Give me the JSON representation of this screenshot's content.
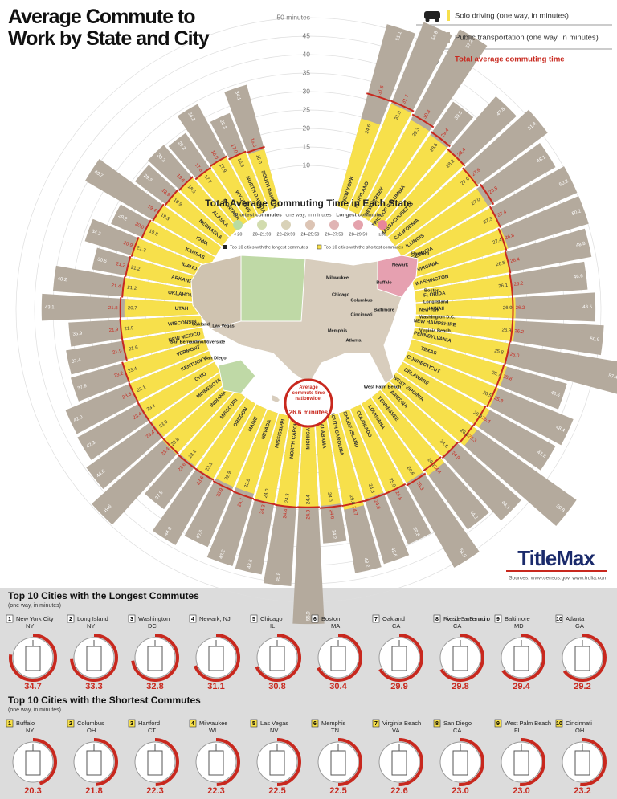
{
  "chart_data": {
    "type": "radial-bar",
    "title": "Average Commute to Work by State and City",
    "categories": [
      "NEW YORK",
      "MARYLAND",
      "NEW JERSEY",
      "DISTRICT OF COLUMBIA",
      "MASSACHUSETTS",
      "CALIFORNIA",
      "ILLINOIS",
      "GEORGIA",
      "VIRGINIA",
      "WASHINGTON",
      "FLORIDA",
      "HAWAII",
      "NEW HAMPSHIRE",
      "PENNSYLVANIA",
      "TEXAS",
      "CONNECTICUT",
      "DELAWARE",
      "WEST VIRGINIA",
      "ARIZONA",
      "TENNESSEE",
      "LOUISIANA",
      "COLORADO",
      "RHODE ISLAND",
      "SOUTH CAROLINA",
      "ALABAMA",
      "MICHIGAN",
      "NORTH CAROLINA",
      "MISSISSIPPI",
      "NEVADA",
      "MAINE",
      "OREGON",
      "MISSOURI",
      "INDIANA",
      "MINNESOTA",
      "OHIO",
      "KENTUCKY",
      "VERMONT",
      "NEW MEXICO",
      "WISCONSIN",
      "UTAH",
      "OKLAHOMA",
      "ARKANSAS",
      "IDAHO",
      "KANSAS",
      "IOWA",
      "NEBRASKA",
      "ALASKA",
      "MONTANA",
      "WYOMING",
      "NORTH DAKOTA",
      "SOUTH DAKOTA"
    ],
    "series": [
      {
        "name": "Solo driving (one way, in minutes)",
        "color": "#f7e04b",
        "values": [
          24.6,
          31.0,
          29.3,
          28.6,
          28.2,
          27.9,
          27.0,
          27.3,
          27.4,
          26.5,
          26.1,
          26.9,
          26.9,
          25.8,
          26.7,
          26.5,
          26.9,
          26.8,
          24.6,
          26.1,
          24.6,
          25.0,
          24.3,
          25.8,
          24.0,
          24.4,
          24.3,
          24.0,
          22.8,
          22.9,
          23.3,
          23.1,
          23.8,
          23.0,
          23.1,
          23.1,
          23.4,
          21.6,
          21.9,
          20.7,
          21.2,
          21.2,
          21.2,
          19.9,
          19.3,
          18.9,
          18.5,
          17.7,
          17.9,
          16.9,
          16.0
        ],
        "value_labels": [
          "24.6",
          "31.0",
          "29.3",
          "28.6",
          "28.2",
          "27.9",
          "27.0",
          "27.3",
          "27.4",
          "26.5",
          "26.1",
          "26.9",
          "26.9",
          "25.8",
          "26.7",
          "26.5",
          "26.9",
          "26.8",
          "24.6",
          "26.1",
          "24.6",
          "25.0",
          "24.3",
          "25.8",
          "24.0",
          "24.4",
          "24.3",
          "24.0",
          "22.8",
          "22.9",
          "23.3",
          "23.1",
          "23.8",
          "23.0",
          "23.1",
          "23.1",
          "23.4",
          "21.6",
          "21.9",
          "20.7",
          "21.2",
          "21.2",
          "21.2",
          "19.9",
          "19.3",
          "18.9",
          "18.5",
          "17.7",
          "17.9",
          "16.9",
          "16.0"
        ]
      },
      {
        "name": "Public transportation (one way, in minutes)",
        "color": "#b4aa9d",
        "values": [
          51.1,
          54.8,
          57.2,
          39.5,
          47.8,
          51.4,
          48.1,
          50.2,
          50.2,
          48.8,
          46.6,
          48.5,
          50.9,
          57.4,
          43.6,
          48.4,
          47.2,
          59.8,
          48.1,
          44.3,
          51.0,
          39.8,
          42.6,
          43.2,
          34.2,
          55.9,
          45.8,
          43.6,
          43.2,
          40.6,
          44.0,
          37.5,
          49.6,
          44.6,
          42.3,
          42.0,
          37.8,
          37.4,
          35.9,
          43.1,
          40.2,
          30.5,
          34.2,
          29.2,
          40.7,
          29.3,
          30.3,
          29.2,
          34.2,
          28.3,
          34.1
        ],
        "value_labels": [
          "51.1",
          "54.8",
          "57.2",
          "39.5",
          "47.8",
          "51.4",
          "48.1",
          "50.2",
          "50.2",
          "48.8",
          "46.6",
          "48.5",
          "50.9",
          "57.4",
          "43.6",
          "48.4",
          "47.2",
          "59.8",
          "48.1",
          "44.3",
          "51.0",
          "39.8",
          "42.6",
          "43.2",
          "34.2",
          "55.9",
          "45.8",
          "43.6",
          "43.2",
          "40.6",
          "44.0",
          "37.5",
          "49.6",
          "44.6",
          "42.3",
          "42.0",
          "37.8",
          "37.4",
          "35.9",
          "43.1",
          "40.2",
          "30.5",
          "34.2",
          "29.2",
          "40.7",
          "29.3",
          "30.3",
          "29.2",
          "34.2",
          "28.3",
          "34.1"
        ]
      },
      {
        "name": "Total average commuting time",
        "color": "#c8281e",
        "values": [
          31.6,
          31.7,
          30.8,
          29.4,
          28.4,
          27.6,
          28.5,
          27.4,
          26.8,
          26.4,
          26.2,
          26.2,
          26.2,
          26.0,
          25.8,
          25.8,
          25.4,
          25.3,
          24.9,
          24.4,
          25.3,
          24.8,
          24.8,
          24.7,
          24.6,
          24.3,
          24.4,
          24.3,
          24.1,
          23.9,
          23.6,
          23.6,
          23.4,
          23.4,
          23.4,
          23.3,
          23.2,
          21.9,
          21.9,
          21.8,
          21.4,
          21.2,
          20.9,
          20.0,
          19.4,
          18.9,
          18.6,
          17.6,
          18.0,
          17.0,
          16.6
        ],
        "value_labels": [
          "31.6",
          "31.7",
          "30.8",
          "29.4",
          "28.4",
          "27.6",
          "28.5",
          "27.4",
          "26.8",
          "26.4",
          "26.2",
          "26.2",
          "26.2",
          "26.0",
          "25.8",
          "25.8",
          "25.4",
          "25.3",
          "24.9",
          "24.4",
          "25.3",
          "24.8",
          "24.8",
          "24.7",
          "24.6",
          "24.3",
          "24.4",
          "24.3",
          "24.1",
          "23.9",
          "23.6",
          "23.6",
          "23.4",
          "23.4",
          "23.4",
          "23.3",
          "23.2",
          "21.9",
          "21.9",
          "21.8",
          "21.4",
          "21.2",
          "20.9",
          "20.0",
          "19.4",
          "18.9",
          "18.6",
          "17.6",
          "18.0",
          "17.0",
          "16.6"
        ]
      }
    ],
    "ylim": [
      0,
      50
    ],
    "yticks": [
      10,
      15,
      20,
      25,
      30,
      35,
      40,
      45,
      {
        "value": 50,
        "label": "50 minutes"
      }
    ],
    "grid": true
  },
  "map": {
    "title": "Total Average Commuting Time in Each State",
    "shortest": "Shortest commutes",
    "unit": "one way, in minutes",
    "longest": "Longest commutes",
    "bins": [
      {
        "label": "< 20",
        "color": "#b9dca0"
      },
      {
        "label": "20–21:59",
        "color": "#d2dcae"
      },
      {
        "label": "22–23:59",
        "color": "#d9d2b8"
      },
      {
        "label": "24–25:59",
        "color": "#dcc4b4"
      },
      {
        "label": "26–27:59",
        "color": "#e0b4b4"
      },
      {
        "label": "28–29:59",
        "color": "#e4a2ac"
      },
      {
        "label": "≥30",
        "color": "#e8869a"
      }
    ],
    "key_longest": "Top 10 cities with the longest commutes",
    "key_shortest": "Top 10 cities with the shortest commutes",
    "cities": [
      "Hartford",
      "Newark",
      "Buffalo",
      "Boston",
      "Milwaukee",
      "Chicago",
      "Columbus",
      "Cincinnati",
      "Baltimore",
      "Long Island",
      "New York",
      "Washington D.C.",
      "Virginia Beach",
      "Memphis",
      "Atlanta",
      "West Palm Beach",
      "Oakland",
      "Las Vegas",
      "San Bernardino/Riverside",
      "San Diego"
    ],
    "national_label": "Average commute time nationwide:",
    "national_value": "26.6 minutes"
  },
  "brand": "TitleMax",
  "sources": "Sources: www.census.gov, www.trulia.com",
  "longest": {
    "title": "Top 10 Cities with the Longest Commutes",
    "subtitle": "(one way, in minutes)",
    "items": [
      {
        "rank": 1,
        "city": "New York City",
        "state": "NY",
        "value": 34.7
      },
      {
        "rank": 2,
        "city": "Long Island",
        "state": "NY",
        "value": 33.3
      },
      {
        "rank": 3,
        "city": "Washington",
        "state": "DC",
        "value": 32.8
      },
      {
        "rank": 4,
        "city": "Newark, NJ",
        "value": 31.1
      },
      {
        "rank": 5,
        "city": "Chicago",
        "state": "IL",
        "value": 30.8
      },
      {
        "rank": 6,
        "city": "Boston",
        "state": "MA",
        "value": 30.4
      },
      {
        "rank": 7,
        "city": "Oakland",
        "state": "CA",
        "value": 29.9
      },
      {
        "rank": 8,
        "city": "Riverside-San Bernardino",
        "state": "CA",
        "value": 29.8
      },
      {
        "rank": 9,
        "city": "Baltimore",
        "state": "MD",
        "value": 29.4
      },
      {
        "rank": 10,
        "city": "Atlanta",
        "state": "GA",
        "value": 29.2
      }
    ]
  },
  "shortest": {
    "title": "Top 10 Cities with the Shortest Commutes",
    "subtitle": "(one way, in minutes)",
    "items": [
      {
        "rank": 1,
        "city": "Buffalo",
        "state": "NY",
        "value": 20.3
      },
      {
        "rank": 2,
        "city": "Columbus",
        "state": "OH",
        "value": 21.8
      },
      {
        "rank": 3,
        "city": "Hartford",
        "state": "CT",
        "value": 22.3
      },
      {
        "rank": 4,
        "city": "Milwaukee",
        "state": "WI",
        "value": 22.3
      },
      {
        "rank": 5,
        "city": "Las Vegas",
        "state": "NV",
        "value": 22.5
      },
      {
        "rank": 6,
        "city": "Memphis",
        "state": "TN",
        "value": 22.5
      },
      {
        "rank": 7,
        "city": "Virginia Beach",
        "state": "VA",
        "value": 22.6
      },
      {
        "rank": 8,
        "city": "San Diego",
        "state": "CA",
        "value": 23.0,
        "value_label": "23.0"
      },
      {
        "rank": 9,
        "city": "West Palm Beach",
        "state": "FL",
        "value": 23.0,
        "value_label": "23.0"
      },
      {
        "rank": 10,
        "city": "Cincinnati",
        "state": "OH",
        "value": 23.2
      }
    ]
  }
}
